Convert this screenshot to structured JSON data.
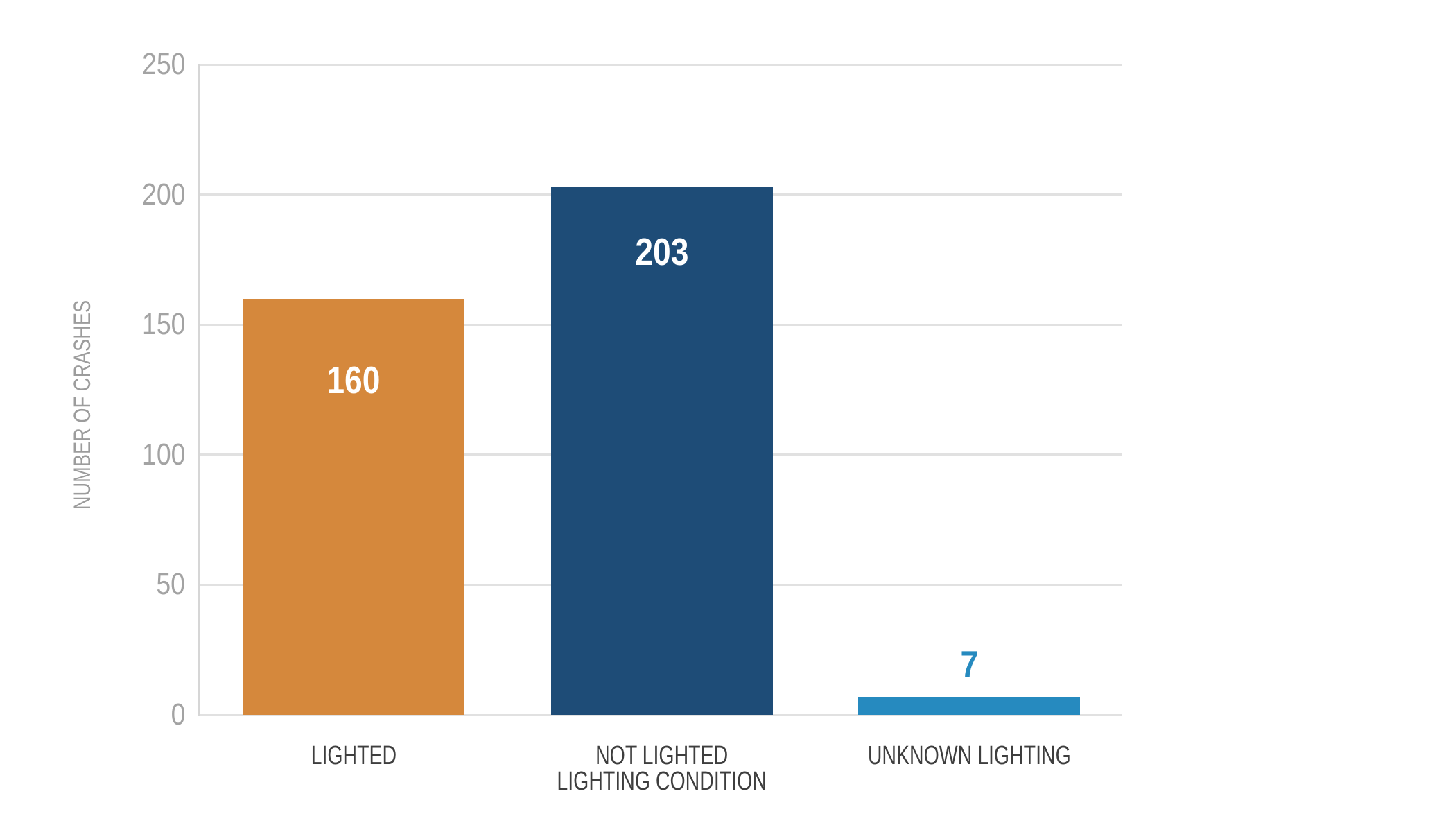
{
  "page": {
    "background": "#FFFFFF"
  },
  "chart_data": {
    "type": "bar",
    "title": "",
    "xlabel": "",
    "ylabel": "NUMBER OF CRASHES",
    "categories": [
      "LIGHTED",
      "NOT LIGHTED\nLIGHTING CONDITION",
      "UNKNOWN LIGHTING"
    ],
    "values": [
      160,
      203,
      7
    ],
    "bar_colors": [
      "#D5883C",
      "#1E4C77",
      "#268ABF"
    ],
    "value_label_colors": [
      "#FFFFFF",
      "#FFFFFF",
      "#268ABF"
    ],
    "value_label_placement": [
      "inside",
      "inside",
      "above"
    ],
    "ylim": [
      0,
      250
    ],
    "yticks": [
      0,
      50,
      100,
      150,
      200,
      250
    ],
    "grid": "horizontal",
    "legend": "none",
    "colors": {
      "gridline": "#E1E1E1",
      "axis_line": "#D6D6D6",
      "tick_label": "#A3A3A3",
      "category_label": "#3E3E3E",
      "axis_title": "#9C9C9C"
    }
  }
}
